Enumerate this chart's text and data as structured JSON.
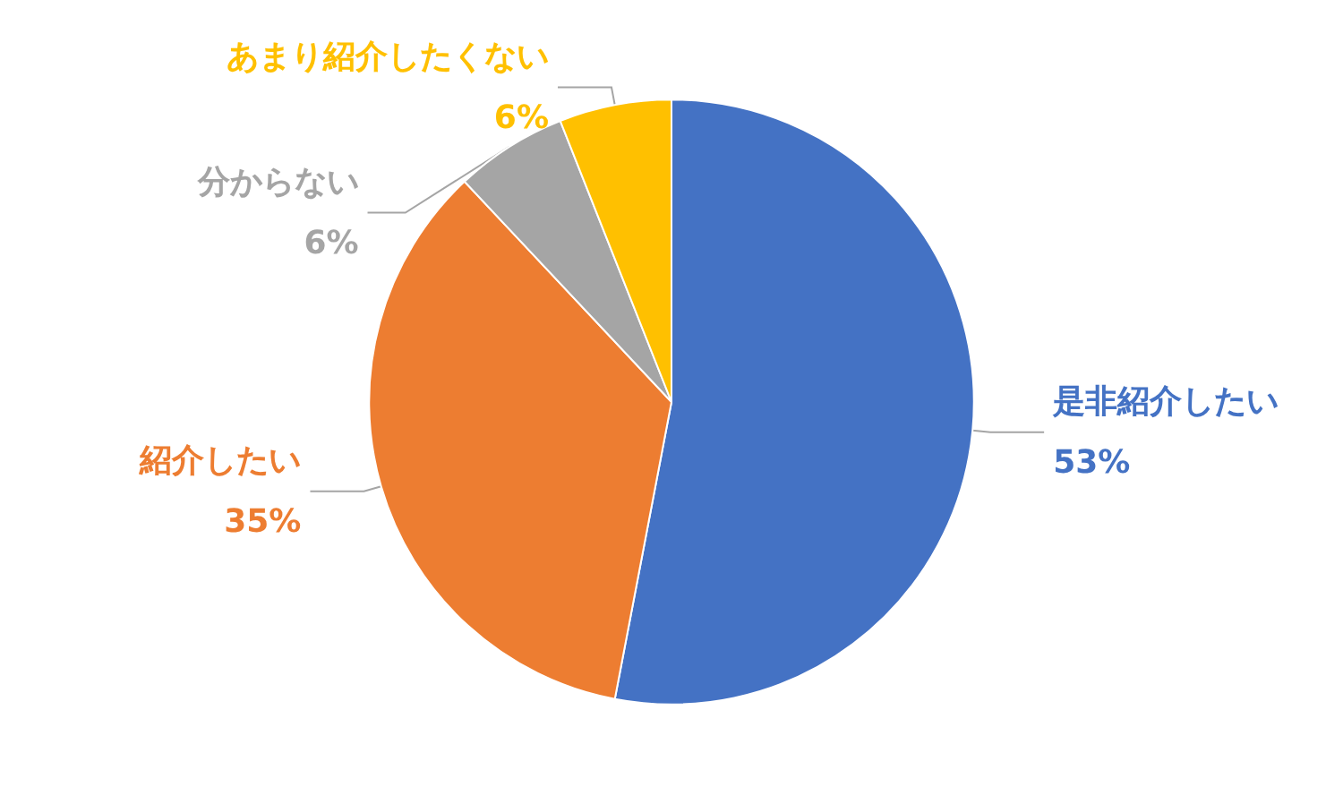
{
  "chart_data": {
    "type": "pie",
    "categories": [
      "是非紹介したい",
      "紹介したい",
      "分からない",
      "あまり紹介したくない"
    ],
    "values": [
      53,
      35,
      6,
      6
    ],
    "colors": [
      "#4472c4",
      "#ed7d31",
      "#a5a5a5",
      "#ffc000"
    ],
    "value_labels": [
      "53%",
      "35%",
      "6%",
      "6%"
    ],
    "legend": false
  }
}
